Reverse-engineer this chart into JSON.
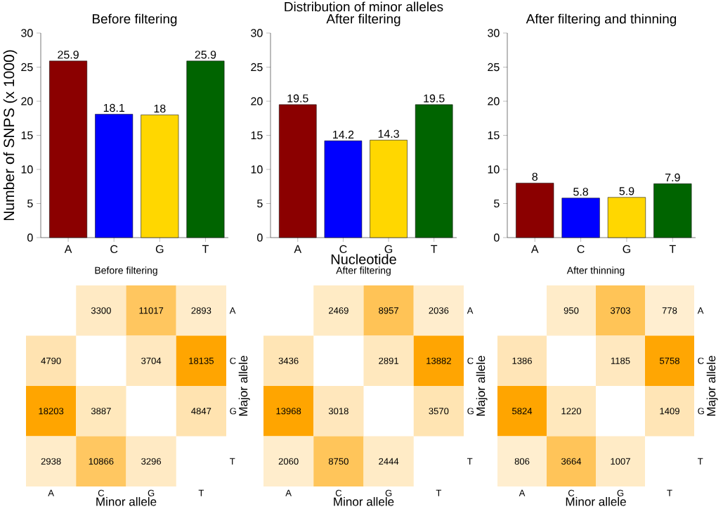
{
  "chart_data": [
    {
      "type": "bar",
      "title": "Before filtering",
      "ylabel": "Number of SNPS (x 1000)",
      "categories": [
        "A",
        "C",
        "G",
        "T"
      ],
      "values": [
        25.9,
        18.1,
        18,
        25.9
      ],
      "colors": [
        "#8b0000",
        "#0000ff",
        "#ffd700",
        "#006400"
      ],
      "ylim": [
        0,
        30
      ],
      "yticks": [
        0,
        5,
        10,
        15,
        20,
        25,
        30
      ],
      "data_labels": true
    },
    {
      "type": "bar",
      "title": "After filtering",
      "xlabel": "Nucleotide",
      "annotations": [
        "Distribution of minor alleles"
      ],
      "categories": [
        "A",
        "C",
        "G",
        "T"
      ],
      "values": [
        19.5,
        14.2,
        14.3,
        19.5
      ],
      "colors": [
        "#8b0000",
        "#0000ff",
        "#ffd700",
        "#006400"
      ],
      "ylim": [
        0,
        30
      ],
      "yticks": [
        0,
        5,
        10,
        15,
        20,
        25,
        30
      ],
      "data_labels": true
    },
    {
      "type": "bar",
      "title": "After filtering and thinning",
      "categories": [
        "A",
        "C",
        "G",
        "T"
      ],
      "values": [
        8,
        5.8,
        5.9,
        7.9
      ],
      "colors": [
        "#8b0000",
        "#0000ff",
        "#ffd700",
        "#006400"
      ],
      "ylim": [
        0,
        30
      ],
      "yticks": [
        0,
        5,
        10,
        15,
        20,
        25,
        30
      ],
      "data_labels": true
    },
    {
      "type": "heatmap",
      "title": "Before filtering",
      "xlabel": "Minor allele",
      "ylabel": "Major allele",
      "categories": [
        "A",
        "C",
        "G",
        "T"
      ],
      "y_categories": [
        "A",
        "C",
        "G",
        "T"
      ],
      "data_labels": true,
      "cells": [
        [
          null,
          3300,
          11017,
          2893
        ],
        [
          4790,
          null,
          3704,
          18135
        ],
        [
          18203,
          3887,
          null,
          4847
        ],
        [
          2938,
          10866,
          3296,
          null
        ]
      ]
    },
    {
      "type": "heatmap",
      "title": "After filtering",
      "xlabel": "Minor allele",
      "ylabel": "Major allele",
      "categories": [
        "A",
        "C",
        "G",
        "T"
      ],
      "y_categories": [
        "A",
        "C",
        "G",
        "T"
      ],
      "data_labels": true,
      "cells": [
        [
          null,
          2469,
          8957,
          2036
        ],
        [
          3436,
          null,
          2891,
          13882
        ],
        [
          13968,
          3018,
          null,
          3570
        ],
        [
          2060,
          8750,
          2444,
          null
        ]
      ]
    },
    {
      "type": "heatmap",
      "title": "After thinning",
      "xlabel": "Minor allele",
      "ylabel": "Major allele",
      "categories": [
        "A",
        "C",
        "G",
        "T"
      ],
      "y_categories": [
        "A",
        "C",
        "G",
        "T"
      ],
      "data_labels": true,
      "cells": [
        [
          null,
          950,
          3703,
          778
        ],
        [
          1386,
          null,
          1185,
          5758
        ],
        [
          5824,
          1220,
          null,
          1409
        ],
        [
          806,
          3664,
          1007,
          null
        ]
      ]
    }
  ]
}
